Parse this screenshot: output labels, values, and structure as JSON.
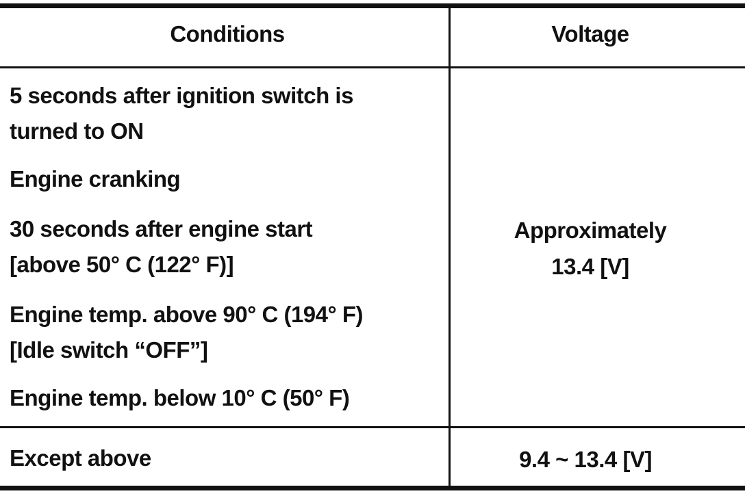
{
  "table": {
    "headers": [
      "Conditions",
      "Voltage"
    ],
    "rows": [
      {
        "conditions": [
          [
            "5 seconds after ignition switch is",
            "turned to ON"
          ],
          [
            "Engine cranking"
          ],
          [
            "30 seconds after engine start",
            "[above 50° C (122° F)]"
          ],
          [
            "Engine temp. above 90° C (194° F)",
            "[Idle switch “OFF”]"
          ],
          [
            "Engine temp. below 10° C (50° F)"
          ]
        ],
        "voltage": [
          "Approximately",
          "13.4 [V]"
        ]
      },
      {
        "conditions": [
          [
            "Except above"
          ]
        ],
        "voltage": [
          "9.4 ~ 13.4 [V]"
        ]
      }
    ]
  }
}
